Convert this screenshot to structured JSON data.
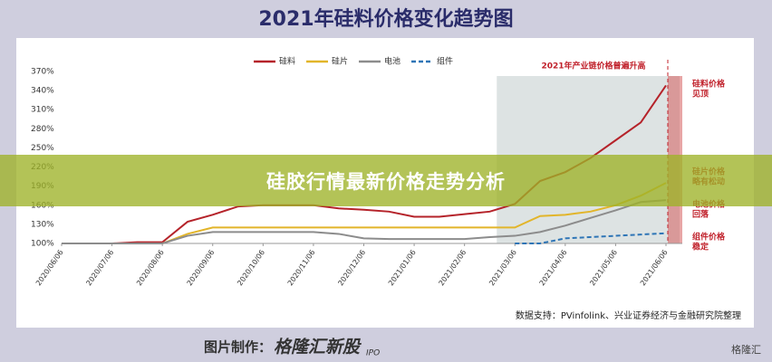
{
  "page_title": "2021年硅料价格变化趋势图",
  "banner": "硅胶行情最新价格走势分析",
  "source": "数据支持：PVinfolink、兴业证券经济与金融研究院整理",
  "footer": {
    "prefix": "图片制作：",
    "brand": "格隆汇新股",
    "suffix": "IPO",
    "logo": "格隆汇"
  },
  "chart_data": {
    "type": "line",
    "categories": [
      "2020/06/06",
      null,
      "2020/07/06",
      null,
      "2020/08/06",
      null,
      "2020/09/06",
      null,
      "2020/10/06",
      null,
      "2020/11/06",
      null,
      "2020/12/06",
      null,
      "2021/01/06",
      null,
      "2021/02/06",
      null,
      "2021/03/06",
      null,
      "2021/04/06",
      null,
      "2021/05/06",
      null,
      "2021/06/06"
    ],
    "series": [
      {
        "name": "硅料",
        "color": "#b5232a",
        "dash": false,
        "values": [
          100,
          100,
          100,
          102,
          102,
          134,
          145,
          158,
          160,
          160,
          160,
          155,
          153,
          150,
          142,
          142,
          146,
          150,
          162,
          198,
          212,
          234,
          262,
          290,
          348
        ]
      },
      {
        "name": "硅片",
        "color": "#e2b52a",
        "dash": false,
        "values": [
          100,
          100,
          100,
          100,
          100,
          115,
          125,
          125,
          125,
          125,
          125,
          125,
          125,
          125,
          125,
          125,
          125,
          125,
          125,
          143,
          145,
          150,
          160,
          175,
          195
        ]
      },
      {
        "name": "电池",
        "color": "#8c8c8c",
        "dash": false,
        "values": [
          100,
          100,
          100,
          100,
          100,
          112,
          118,
          118,
          118,
          118,
          118,
          115,
          108,
          107,
          107,
          107,
          107,
          110,
          112,
          118,
          128,
          140,
          152,
          165,
          168
        ]
      },
      {
        "name": "组件",
        "color": "#2e75b6",
        "dash": true,
        "values": [
          null,
          null,
          null,
          null,
          null,
          null,
          null,
          null,
          null,
          null,
          null,
          null,
          null,
          null,
          null,
          null,
          null,
          null,
          100,
          100,
          108,
          110,
          112,
          114,
          116
        ]
      }
    ],
    "ylim": [
      100,
      370
    ],
    "yticks": [
      {
        "value": 100,
        "label": "100%"
      },
      {
        "value": 130,
        "label": "130%"
      },
      {
        "value": 160,
        "label": "160%"
      },
      {
        "value": 190,
        "label": "190%"
      },
      {
        "value": 220,
        "label": "220%"
      },
      {
        "value": 250,
        "label": "250%"
      },
      {
        "value": 280,
        "label": "280%"
      },
      {
        "value": 310,
        "label": "310%"
      },
      {
        "value": 340,
        "label": "340%"
      },
      {
        "value": 370,
        "label": "370%"
      }
    ],
    "grid": false,
    "highlight_title": "2021年产业链价格普遍升高",
    "annotations": [
      {
        "lines": [
          "硅料价格",
          "见顶"
        ],
        "color": "#c0202a"
      },
      {
        "lines": [
          "硅片价格",
          "略有松动"
        ],
        "color": "#c0202a"
      },
      {
        "lines": [
          "电池价格",
          "回落"
        ],
        "color": "#c0202a"
      },
      {
        "lines": [
          "组件价格",
          "稳定"
        ],
        "color": "#c0202a"
      }
    ]
  }
}
